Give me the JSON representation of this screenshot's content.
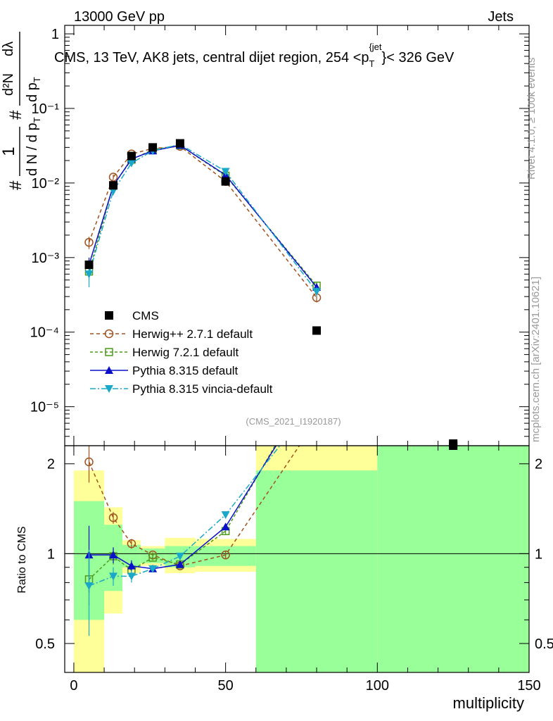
{
  "header": {
    "left": "13000 GeV pp",
    "right": "Jets"
  },
  "side": {
    "rivet": "Rivet 4.1.0, ≥ 100k events",
    "mcplots": "mcplots.cern.ch [arXiv:2401.10621]"
  },
  "title": {
    "main": "CMS, 13 TeV, AK8 jets, central dijet region, 254 <p",
    "sub": "T",
    "sup": "{jet",
    "end": "}< 326 GeV"
  },
  "watermark": "(CMS_2021_I1920187)",
  "ylabel_main": {
    "num": "1",
    "den": "d N / d p",
    "den_sub": "T",
    "hash": "#",
    "dnum": "d²N",
    "dden": "d p",
    "dden_sub": "T",
    "dlambda": "dλ",
    "hash2": "#"
  },
  "ylabel_ratio": "Ratio to CMS",
  "xlabel": "multiplicity",
  "legend": [
    {
      "key": "cms",
      "label": "CMS"
    },
    {
      "key": "herwigpp",
      "label": "Herwig++ 2.7.1 default"
    },
    {
      "key": "herwig7",
      "label": "Herwig 7.2.1 default"
    },
    {
      "key": "pythia",
      "label": "Pythia 8.315 default"
    },
    {
      "key": "vincia",
      "label": "Pythia 8.315 vincia-default"
    }
  ],
  "colors": {
    "cms": "#000000",
    "herwigpp": "#a0521e",
    "herwig7": "#4c9a1a",
    "pythia": "#0a10c8",
    "vincia": "#1aa8c8",
    "band_green": "#99ff99",
    "band_yellow": "#ffff99"
  },
  "chart_data": {
    "type": "line",
    "xlabel": "multiplicity",
    "xlim": [
      -3,
      150
    ],
    "xticks": [
      0,
      50,
      100,
      150
    ],
    "main": {
      "yscale": "log",
      "ylim": [
        3e-06,
        1.3
      ],
      "yticks": [
        {
          "v": 1,
          "t": "1"
        },
        {
          "v": 0.1,
          "t": "10⁻¹"
        },
        {
          "v": 0.01,
          "t": "10⁻²"
        },
        {
          "v": 0.001,
          "t": "10⁻³"
        },
        {
          "v": 0.0001,
          "t": "10⁻⁴"
        },
        {
          "v": 1e-05,
          "t": "10⁻⁵"
        }
      ]
    },
    "ratio": {
      "yscale": "log",
      "ylim": [
        0.4,
        2.3
      ],
      "yticks": [
        {
          "v": 0.5,
          "t": "0.5"
        },
        {
          "v": 1,
          "t": "1"
        },
        {
          "v": 2,
          "t": "2"
        }
      ]
    },
    "bins": [
      {
        "lo": 0,
        "hi": 10,
        "g": [
          0.6,
          1.5
        ],
        "y": [
          0.4,
          1.9
        ]
      },
      {
        "lo": 10,
        "hi": 16,
        "g": [
          0.75,
          1.25
        ],
        "y": [
          0.63,
          1.43
        ]
      },
      {
        "lo": 16,
        "hi": 22,
        "g": [
          0.9,
          1.07
        ],
        "y": [
          0.86,
          1.11
        ]
      },
      {
        "lo": 22,
        "hi": 30,
        "g": [
          0.93,
          1.04
        ],
        "y": [
          0.91,
          1.06
        ]
      },
      {
        "lo": 30,
        "hi": 40,
        "g": [
          0.9,
          1.06
        ],
        "y": [
          0.86,
          1.13
        ]
      },
      {
        "lo": 40,
        "hi": 60,
        "g": [
          0.91,
          1.06
        ],
        "y": [
          0.87,
          1.12
        ]
      },
      {
        "lo": 60,
        "hi": 100,
        "g": [
          0.4,
          2.3
        ],
        "y": [
          0.4,
          2.3
        ],
        "ybottom": 1.9
      },
      {
        "lo": 100,
        "hi": 150,
        "g": [
          0.4,
          2.3
        ],
        "y": [
          0.4,
          2.3
        ]
      }
    ],
    "series": [
      {
        "name": "CMS",
        "key": "cms",
        "marker": "square",
        "x": [
          5,
          13,
          19,
          26,
          35,
          50,
          80,
          125
        ],
        "y": [
          0.0008,
          0.0093,
          0.023,
          0.03,
          0.034,
          0.0105,
          0.000105,
          3.2e-06
        ],
        "ratio": []
      },
      {
        "name": "Herwig++ 2.7.1 default",
        "key": "herwigpp",
        "marker": "circle",
        "dash": "5,4",
        "x": [
          5,
          13,
          19,
          26,
          35,
          50,
          80
        ],
        "y": [
          0.0016,
          0.012,
          0.0245,
          0.029,
          0.031,
          0.0105,
          0.00029
        ],
        "err": [
          0.0003,
          0.001,
          0.001,
          0.001,
          0.001,
          0.0005,
          4e-05
        ],
        "ratio": [
          2.03,
          1.32,
          1.08,
          0.99,
          0.91,
          0.99,
          2.8
        ],
        "rerr": [
          0.3,
          0.06,
          0.04,
          0.02,
          0.02,
          0.03,
          0
        ]
      },
      {
        "name": "Herwig 7.2.1 default",
        "key": "herwig7",
        "marker": "openSquare",
        "dash": "4,3",
        "x": [
          5,
          13,
          19,
          26,
          35,
          50,
          80
        ],
        "y": [
          0.00065,
          0.0093,
          0.0205,
          0.028,
          0.032,
          0.0125,
          0.00042
        ],
        "err": [
          0.00015,
          0.001,
          0.001,
          0.001,
          0.001,
          0.0006,
          5e-05
        ],
        "ratio": [
          0.82,
          0.98,
          0.88,
          0.97,
          0.92,
          1.19,
          4.0
        ],
        "rerr": [
          0.15,
          0.06,
          0.04,
          0.02,
          0.02,
          0.03,
          0
        ]
      },
      {
        "name": "Pythia 8.315 default",
        "key": "pythia",
        "marker": "triUp",
        "dash": "",
        "x": [
          5,
          13,
          19,
          26,
          35,
          50,
          80
        ],
        "y": [
          0.0008,
          0.0092,
          0.021,
          0.027,
          0.032,
          0.0128,
          0.0004
        ],
        "err": [
          0.0002,
          0.001,
          0.001,
          0.001,
          0.001,
          0.0006,
          5e-05
        ],
        "ratio": [
          0.99,
          0.99,
          0.91,
          0.89,
          0.92,
          1.23,
          3.8
        ],
        "rerr": [
          0.25,
          0.06,
          0.04,
          0.02,
          0.02,
          0.03,
          0
        ]
      },
      {
        "name": "Pythia 8.315 vincia-default",
        "key": "vincia",
        "marker": "triDown",
        "dash": "8,3,2,3",
        "x": [
          5,
          13,
          19,
          26,
          35,
          50,
          80
        ],
        "y": [
          0.0006,
          0.0078,
          0.0185,
          0.027,
          0.033,
          0.0143,
          0.00035
        ],
        "err": [
          0.0002,
          0.001,
          0.001,
          0.001,
          0.001,
          0.0006,
          5e-05
        ],
        "ratio": [
          0.78,
          0.84,
          0.84,
          0.89,
          0.98,
          1.35,
          3.3
        ],
        "rerr": [
          0.25,
          0.06,
          0.04,
          0.02,
          0.02,
          0.03,
          0
        ]
      }
    ]
  }
}
